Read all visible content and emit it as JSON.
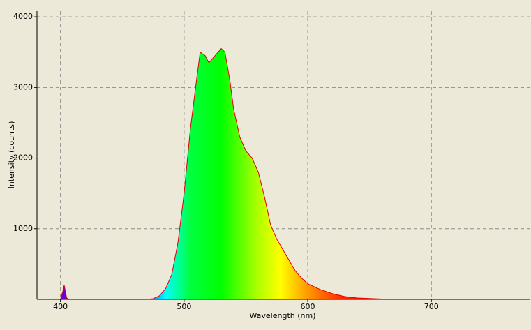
{
  "chart_data": {
    "type": "area",
    "x_label": "Wavelength (nm)",
    "y_label": "Intensity (counts)",
    "x": [
      398,
      400,
      401,
      402,
      403,
      404,
      405,
      407,
      470,
      475,
      480,
      485,
      490,
      495,
      500,
      505,
      510,
      513,
      517,
      520,
      525,
      530,
      533,
      537,
      540,
      545,
      550,
      555,
      560,
      565,
      570,
      575,
      580,
      585,
      590,
      595,
      600,
      605,
      610,
      620,
      630,
      640,
      660,
      680
    ],
    "series": [
      {
        "name": "Intensity",
        "color": "#e00000",
        "values": [
          0,
          0,
          60,
          120,
          200,
          110,
          20,
          0,
          0,
          10,
          50,
          150,
          350,
          800,
          1500,
          2400,
          3100,
          3500,
          3450,
          3350,
          3450,
          3550,
          3500,
          3100,
          2700,
          2300,
          2100,
          2000,
          1800,
          1450,
          1050,
          850,
          700,
          550,
          400,
          300,
          220,
          180,
          140,
          80,
          40,
          20,
          5,
          0
        ]
      }
    ],
    "color_stops": [
      {
        "wavelength": 380,
        "color": "#7a00a0"
      },
      {
        "wavelength": 420,
        "color": "#6000ff"
      },
      {
        "wavelength": 470,
        "color": "#0060ff"
      },
      {
        "wavelength": 485,
        "color": "#00ffff"
      },
      {
        "wavelength": 505,
        "color": "#00ff40"
      },
      {
        "wavelength": 530,
        "color": "#00ff00"
      },
      {
        "wavelength": 560,
        "color": "#b0ff00"
      },
      {
        "wavelength": 578,
        "color": "#ffff00"
      },
      {
        "wavelength": 600,
        "color": "#ff9900"
      },
      {
        "wavelength": 630,
        "color": "#ff2000"
      },
      {
        "wavelength": 700,
        "color": "#e00000"
      }
    ],
    "xlim": [
      381,
      780
    ],
    "ylim": [
      0,
      4080
    ],
    "xticks": [
      400,
      500,
      600,
      700
    ],
    "yticks": [
      1000,
      2000,
      3000,
      4000
    ],
    "grid": true
  }
}
